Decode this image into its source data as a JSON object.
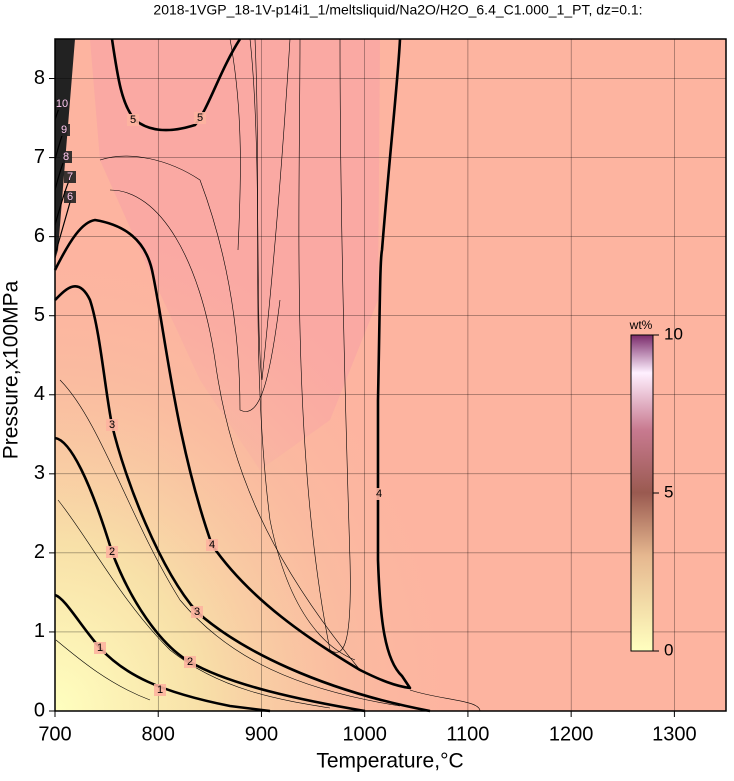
{
  "chart_data": {
    "type": "contour",
    "title": "2018-1VGP_18-1V-p14i1_1/meltsliquid/Na2O/H2O_6.4_C1.000_1_PT, dz=0.1:",
    "x_label": "Temperature,°C",
    "y_label": "Pressure,x100MPa",
    "xlim": [
      700,
      1350
    ],
    "ylim": [
      0,
      8.5
    ],
    "xticks": [
      700,
      800,
      900,
      1000,
      1100,
      1200,
      1300
    ],
    "yticks": [
      0,
      1,
      2,
      3,
      4,
      5,
      6,
      7,
      8
    ],
    "grid": true,
    "contour_levels": [
      1,
      2,
      3,
      4,
      5,
      6,
      7,
      8,
      9,
      10
    ],
    "colorbar": {
      "label": "wt%",
      "lim": [
        0,
        10
      ],
      "ticks": [
        0,
        5,
        10
      ]
    }
  }
}
